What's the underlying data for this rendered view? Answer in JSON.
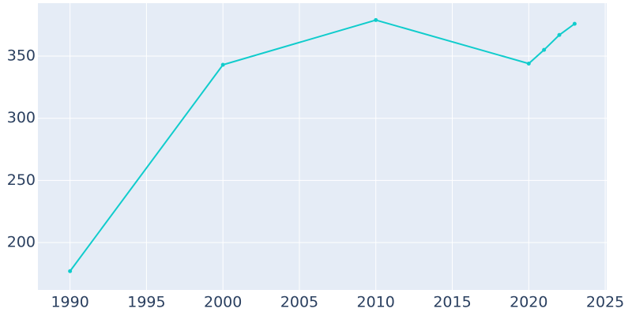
{
  "chart_data": {
    "type": "line",
    "x": [
      1990,
      2000,
      2010,
      2020,
      2021,
      2022,
      2023
    ],
    "series": [
      {
        "color": "#10cccc",
        "values": [
          177,
          343,
          379,
          344,
          355,
          367,
          376
        ]
      }
    ],
    "xlim": [
      1987.9,
      2025.1
    ],
    "xticks": [
      1990,
      1995,
      2000,
      2005,
      2010,
      2015,
      2020,
      2025
    ],
    "ylim": [
      161.9,
      392.6
    ],
    "yticks": [
      200,
      250,
      300,
      350
    ],
    "grid": true
  }
}
